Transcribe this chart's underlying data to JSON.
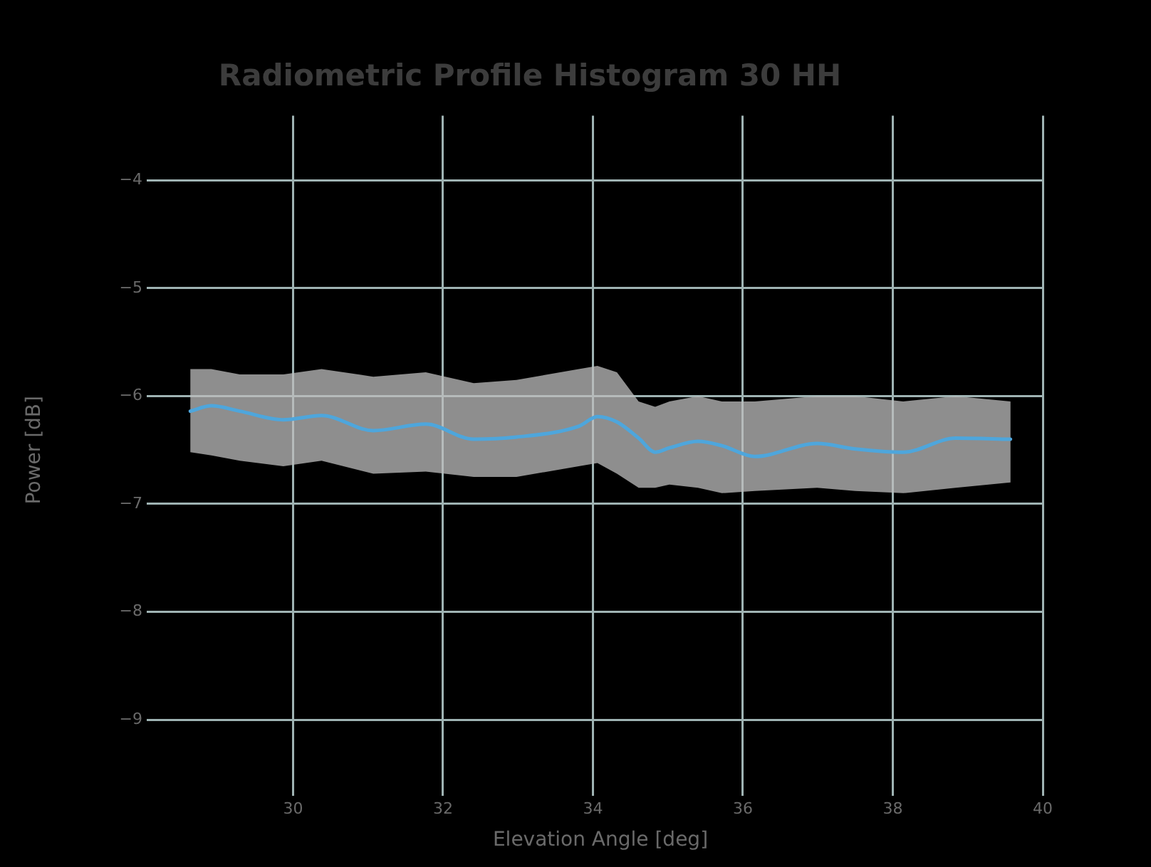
{
  "chart_data": {
    "type": "line",
    "title": "Radiometric Profile Histogram 30 HH",
    "xlabel": "Elevation Angle [deg]",
    "ylabel": "Power [dB]",
    "x": [
      28.63,
      28.91,
      29.29,
      29.87,
      30.38,
      31.07,
      31.77,
      32.41,
      32.98,
      33.81,
      34.06,
      34.32,
      34.61,
      34.83,
      35.02,
      35.4,
      35.72,
      36.16,
      36.99,
      37.5,
      38.14,
      38.84,
      39.57
    ],
    "series": [
      {
        "color": "#4ea6dc",
        "values": [
          -6.14,
          -6.09,
          -6.14,
          -6.22,
          -6.18,
          -6.32,
          -6.26,
          -6.4,
          -6.38,
          -6.28,
          -6.19,
          -6.24,
          -6.39,
          -6.52,
          -6.48,
          -6.42,
          -6.46,
          -6.56,
          -6.44,
          -6.49,
          -6.52,
          -6.39,
          -6.4
        ],
        "upper": [
          -5.75,
          -5.75,
          -5.8,
          -5.8,
          -5.75,
          -5.82,
          -5.78,
          -5.88,
          -5.85,
          -5.75,
          -5.72,
          -5.78,
          -6.05,
          -6.1,
          -6.05,
          -6.0,
          -6.05,
          -6.05,
          -6.0,
          -6.0,
          -6.05,
          -6.0,
          -6.05
        ],
        "lower": [
          -6.52,
          -6.55,
          -6.6,
          -6.65,
          -6.6,
          -6.72,
          -6.7,
          -6.75,
          -6.75,
          -6.65,
          -6.62,
          -6.72,
          -6.85,
          -6.85,
          -6.82,
          -6.85,
          -6.9,
          -6.88,
          -6.85,
          -6.88,
          -6.9,
          -6.85,
          -6.8
        ]
      }
    ],
    "xlim": [
      28.2,
      40
    ],
    "xticks": [
      30,
      32,
      34,
      36,
      38,
      40
    ],
    "ylim": [
      -9.6,
      -3.4
    ],
    "yticks": [
      -9,
      -8,
      -7,
      -6,
      -5,
      -4
    ],
    "grid": true,
    "legend": false,
    "marker": "none",
    "line_style": "solid"
  }
}
